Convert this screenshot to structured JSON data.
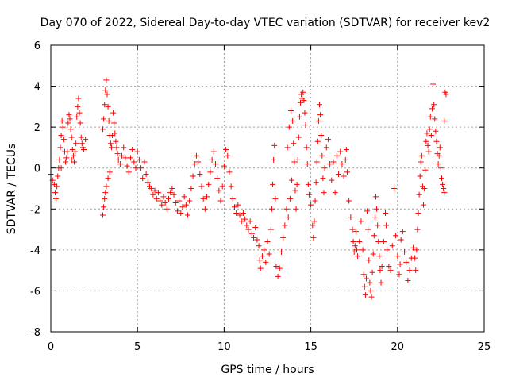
{
  "chart_data": {
    "type": "scatter",
    "title": "Day 070 of 2022, Sidereal Day-to-day VTEC variation (SDTVAR) for receiver kev2",
    "xlabel": "GPS time / hours",
    "ylabel": "SDTVAR / TECUs",
    "xlim": [
      0,
      25
    ],
    "ylim": [
      -8,
      6
    ],
    "xticks": [
      "0",
      "5",
      "10",
      "15",
      "20",
      "25"
    ],
    "yticks": [
      "-8",
      "-6",
      "-4",
      "-2",
      "0",
      "2",
      "4",
      "6"
    ],
    "grid": true,
    "marker": "+",
    "color": "#ff0000",
    "series": [
      {
        "name": "SDTVAR",
        "points": [
          [
            0.0,
            -0.3
          ],
          [
            0.1,
            -0.6
          ],
          [
            0.2,
            -0.8
          ],
          [
            0.25,
            -1.2
          ],
          [
            0.3,
            -1.5
          ],
          [
            0.35,
            -0.9
          ],
          [
            0.4,
            -0.4
          ],
          [
            0.45,
            0.0
          ],
          [
            0.5,
            0.4
          ],
          [
            0.55,
            1.0
          ],
          [
            0.6,
            1.6
          ],
          [
            0.65,
            2.3
          ],
          [
            0.7,
            2.0
          ],
          [
            0.75,
            1.4
          ],
          [
            0.8,
            0.8
          ],
          [
            0.85,
            0.3
          ],
          [
            0.9,
            0.5
          ],
          [
            0.95,
            0.8
          ],
          [
            1.0,
            2.2
          ],
          [
            1.05,
            2.6
          ],
          [
            1.1,
            2.4
          ],
          [
            1.15,
            1.9
          ],
          [
            1.2,
            1.5
          ],
          [
            1.25,
            0.9
          ],
          [
            1.3,
            0.6
          ],
          [
            1.35,
            0.3
          ],
          [
            1.4,
            0.8
          ],
          [
            1.45,
            1.2
          ],
          [
            1.5,
            2.5
          ],
          [
            1.55,
            3.0
          ],
          [
            1.6,
            3.4
          ],
          [
            1.65,
            2.7
          ],
          [
            1.7,
            2.2
          ],
          [
            1.75,
            1.5
          ],
          [
            1.8,
            1.2
          ],
          [
            1.85,
            1.0
          ],
          [
            1.9,
            0.9
          ],
          [
            2.0,
            1.4
          ],
          [
            0.6,
            0.0
          ],
          [
            1.2,
            0.4
          ],
          [
            3.0,
            -2.3
          ],
          [
            3.05,
            -1.9
          ],
          [
            3.1,
            -1.5
          ],
          [
            3.15,
            -1.2
          ],
          [
            3.2,
            -0.9
          ],
          [
            3.3,
            -0.5
          ],
          [
            3.4,
            -0.2
          ],
          [
            3.0,
            1.9
          ],
          [
            3.05,
            2.4
          ],
          [
            3.1,
            3.1
          ],
          [
            3.15,
            3.8
          ],
          [
            3.2,
            4.3
          ],
          [
            3.25,
            3.6
          ],
          [
            3.3,
            3.0
          ],
          [
            3.35,
            2.3
          ],
          [
            3.4,
            1.6
          ],
          [
            3.45,
            1.2
          ],
          [
            3.5,
            1.0
          ],
          [
            3.55,
            1.6
          ],
          [
            3.6,
            2.7
          ],
          [
            3.65,
            2.2
          ],
          [
            3.7,
            1.7
          ],
          [
            3.75,
            1.3
          ],
          [
            3.8,
            1.0
          ],
          [
            3.85,
            0.7
          ],
          [
            3.9,
            0.4
          ],
          [
            4.0,
            0.2
          ],
          [
            4.1,
            0.6
          ],
          [
            4.2,
            1.0
          ],
          [
            4.3,
            0.5
          ],
          [
            4.4,
            0.1
          ],
          [
            4.5,
            -0.2
          ],
          [
            4.6,
            0.5
          ],
          [
            4.7,
            0.9
          ],
          [
            4.8,
            0.3
          ],
          [
            4.9,
            0.0
          ],
          [
            5.0,
            0.8
          ],
          [
            5.1,
            0.4
          ],
          [
            5.2,
            0.0
          ],
          [
            5.3,
            -0.5
          ],
          [
            5.4,
            0.3
          ],
          [
            5.5,
            -0.3
          ],
          [
            5.6,
            -0.7
          ],
          [
            5.7,
            -0.9
          ],
          [
            5.8,
            -1.0
          ],
          [
            5.9,
            -1.3
          ],
          [
            6.0,
            -1.1
          ],
          [
            6.1,
            -1.5
          ],
          [
            6.2,
            -1.2
          ],
          [
            6.3,
            -1.6
          ],
          [
            6.4,
            -1.8
          ],
          [
            6.5,
            -1.4
          ],
          [
            6.6,
            -1.7
          ],
          [
            6.7,
            -2.0
          ],
          [
            6.8,
            -1.5
          ],
          [
            6.9,
            -1.2
          ],
          [
            7.0,
            -1.0
          ],
          [
            7.1,
            -1.3
          ],
          [
            7.2,
            -1.7
          ],
          [
            7.3,
            -2.1
          ],
          [
            7.4,
            -1.6
          ],
          [
            7.5,
            -2.2
          ],
          [
            7.6,
            -1.9
          ],
          [
            7.7,
            -1.4
          ],
          [
            7.8,
            -1.8
          ],
          [
            7.9,
            -2.3
          ],
          [
            8.0,
            -1.6
          ],
          [
            8.1,
            -1.0
          ],
          [
            8.2,
            -0.4
          ],
          [
            8.3,
            0.2
          ],
          [
            8.4,
            0.6
          ],
          [
            8.5,
            0.3
          ],
          [
            8.6,
            -0.3
          ],
          [
            8.7,
            -0.9
          ],
          [
            8.8,
            -1.5
          ],
          [
            8.9,
            -2.0
          ],
          [
            9.0,
            -1.4
          ],
          [
            9.1,
            -0.8
          ],
          [
            9.2,
            -0.2
          ],
          [
            9.3,
            0.4
          ],
          [
            9.4,
            0.8
          ],
          [
            9.5,
            0.2
          ],
          [
            9.6,
            -0.5
          ],
          [
            9.7,
            -1.1
          ],
          [
            9.8,
            -1.6
          ],
          [
            9.9,
            -0.9
          ],
          [
            10.0,
            0.1
          ],
          [
            10.1,
            0.9
          ],
          [
            10.2,
            0.6
          ],
          [
            10.3,
            -0.2
          ],
          [
            10.4,
            -0.9
          ],
          [
            10.5,
            -1.5
          ],
          [
            10.6,
            -1.9
          ],
          [
            10.7,
            -2.2
          ],
          [
            10.8,
            -1.8
          ],
          [
            10.9,
            -2.3
          ],
          [
            11.0,
            -2.6
          ],
          [
            11.1,
            -2.2
          ],
          [
            11.2,
            -2.5
          ],
          [
            11.3,
            -2.8
          ],
          [
            11.4,
            -3.0
          ],
          [
            11.5,
            -2.6
          ],
          [
            11.6,
            -3.2
          ],
          [
            11.7,
            -3.4
          ],
          [
            11.8,
            -2.9
          ],
          [
            11.9,
            -3.5
          ],
          [
            12.0,
            -3.8
          ],
          [
            12.05,
            -4.5
          ],
          [
            12.1,
            -4.9
          ],
          [
            12.2,
            -4.3
          ],
          [
            12.3,
            -4.0
          ],
          [
            12.4,
            -4.6
          ],
          [
            12.5,
            -3.6
          ],
          [
            12.6,
            -4.2
          ],
          [
            12.7,
            -3.0
          ],
          [
            12.75,
            -2.0
          ],
          [
            12.8,
            -0.8
          ],
          [
            12.85,
            0.4
          ],
          [
            12.9,
            1.1
          ],
          [
            12.95,
            -1.5
          ],
          [
            13.0,
            -4.8
          ],
          [
            13.1,
            -5.3
          ],
          [
            13.2,
            -4.9
          ],
          [
            13.3,
            -4.1
          ],
          [
            13.4,
            -3.4
          ],
          [
            13.5,
            -2.8
          ],
          [
            13.6,
            -2.0
          ],
          [
            13.7,
            -2.4
          ],
          [
            13.8,
            -1.5
          ],
          [
            13.9,
            -0.6
          ],
          [
            13.65,
            1.0
          ],
          [
            13.75,
            2.0
          ],
          [
            13.85,
            2.8
          ],
          [
            13.95,
            2.3
          ],
          [
            14.0,
            1.2
          ],
          [
            14.05,
            0.3
          ],
          [
            14.1,
            -1.1
          ],
          [
            14.15,
            -2.0
          ],
          [
            14.2,
            -0.8
          ],
          [
            14.25,
            0.4
          ],
          [
            14.3,
            1.5
          ],
          [
            14.35,
            2.5
          ],
          [
            14.4,
            3.2
          ],
          [
            14.45,
            3.6
          ],
          [
            14.5,
            3.4
          ],
          [
            14.55,
            3.7
          ],
          [
            14.6,
            3.3
          ],
          [
            14.65,
            2.7
          ],
          [
            14.7,
            2.1
          ],
          [
            14.75,
            1.0
          ],
          [
            14.8,
            0.2
          ],
          [
            14.85,
            -0.8
          ],
          [
            14.9,
            -1.3
          ],
          [
            15.0,
            -1.8
          ],
          [
            15.1,
            -2.8
          ],
          [
            15.15,
            -3.4
          ],
          [
            15.2,
            -2.6
          ],
          [
            15.25,
            -1.6
          ],
          [
            15.3,
            -0.7
          ],
          [
            15.35,
            0.3
          ],
          [
            15.4,
            1.3
          ],
          [
            15.45,
            2.3
          ],
          [
            15.5,
            3.1
          ],
          [
            15.55,
            2.6
          ],
          [
            15.6,
            1.6
          ],
          [
            15.65,
            0.6
          ],
          [
            15.7,
            -0.5
          ],
          [
            15.75,
            -1.2
          ],
          [
            15.8,
            0.0
          ],
          [
            15.9,
            1.0
          ],
          [
            16.0,
            1.4
          ],
          [
            16.1,
            0.2
          ],
          [
            16.2,
            -0.6
          ],
          [
            16.3,
            0.3
          ],
          [
            16.4,
            -1.2
          ],
          [
            16.5,
            0.6
          ],
          [
            16.6,
            -0.3
          ],
          [
            16.7,
            0.8
          ],
          [
            16.8,
            0.2
          ],
          [
            16.9,
            -0.4
          ],
          [
            17.0,
            0.4
          ],
          [
            17.05,
            0.9
          ],
          [
            17.1,
            -0.2
          ],
          [
            17.2,
            -1.6
          ],
          [
            17.3,
            -2.4
          ],
          [
            17.4,
            -3.0
          ],
          [
            17.45,
            -3.6
          ],
          [
            17.5,
            -4.1
          ],
          [
            17.55,
            -3.8
          ],
          [
            17.6,
            -3.1
          ],
          [
            17.65,
            -4.0
          ],
          [
            17.7,
            -4.3
          ],
          [
            17.8,
            -3.6
          ],
          [
            17.9,
            -2.6
          ],
          [
            18.0,
            -4.0
          ],
          [
            18.05,
            -5.2
          ],
          [
            18.1,
            -5.8
          ],
          [
            18.15,
            -6.2
          ],
          [
            18.2,
            -5.4
          ],
          [
            18.25,
            -2.1
          ],
          [
            18.3,
            -3.0
          ],
          [
            18.35,
            -4.5
          ],
          [
            18.4,
            -5.6
          ],
          [
            18.45,
            -6.0
          ],
          [
            18.5,
            -6.3
          ],
          [
            18.55,
            -5.1
          ],
          [
            18.6,
            -4.2
          ],
          [
            18.65,
            -3.3
          ],
          [
            18.7,
            -2.4
          ],
          [
            18.75,
            -1.4
          ],
          [
            18.8,
            -2.0
          ],
          [
            18.85,
            -2.8
          ],
          [
            18.9,
            -3.6
          ],
          [
            18.95,
            -4.3
          ],
          [
            19.0,
            -5.0
          ],
          [
            19.05,
            -5.6
          ],
          [
            19.1,
            -4.8
          ],
          [
            19.2,
            -3.6
          ],
          [
            19.3,
            -2.2
          ],
          [
            19.35,
            -2.8
          ],
          [
            19.4,
            -4.0
          ],
          [
            19.5,
            -4.8
          ],
          [
            19.6,
            -5.0
          ],
          [
            19.7,
            -3.8
          ],
          [
            19.8,
            -1.0
          ],
          [
            19.9,
            -3.3
          ],
          [
            20.0,
            -4.3
          ],
          [
            20.1,
            -5.2
          ],
          [
            20.15,
            -4.7
          ],
          [
            20.2,
            -3.5
          ],
          [
            20.3,
            -3.1
          ],
          [
            20.4,
            -4.1
          ],
          [
            20.5,
            -4.6
          ],
          [
            20.6,
            -5.5
          ],
          [
            20.7,
            -5.0
          ],
          [
            20.8,
            -4.4
          ],
          [
            20.9,
            -3.9
          ],
          [
            21.0,
            -4.4
          ],
          [
            21.05,
            -5.0
          ],
          [
            21.1,
            -4.0
          ],
          [
            21.15,
            -3.0
          ],
          [
            21.2,
            -2.2
          ],
          [
            21.25,
            -1.3
          ],
          [
            21.3,
            -0.4
          ],
          [
            21.35,
            0.3
          ],
          [
            21.4,
            0.6
          ],
          [
            21.45,
            -0.9
          ],
          [
            21.5,
            -1.8
          ],
          [
            21.55,
            -1.0
          ],
          [
            21.6,
            -0.1
          ],
          [
            21.65,
            1.3
          ],
          [
            21.7,
            1.7
          ],
          [
            21.75,
            1.1
          ],
          [
            21.8,
            0.8
          ],
          [
            21.85,
            1.9
          ],
          [
            21.9,
            2.5
          ],
          [
            21.95,
            1.6
          ],
          [
            22.0,
            2.9
          ],
          [
            22.05,
            4.1
          ],
          [
            22.1,
            3.1
          ],
          [
            22.15,
            2.4
          ],
          [
            22.2,
            1.8
          ],
          [
            22.25,
            1.3
          ],
          [
            22.3,
            0.7
          ],
          [
            22.35,
            0.2
          ],
          [
            22.4,
            0.6
          ],
          [
            22.45,
            1.0
          ],
          [
            22.5,
            0.0
          ],
          [
            22.55,
            -0.5
          ],
          [
            22.6,
            -0.8
          ],
          [
            22.65,
            -1.0
          ],
          [
            22.7,
            -1.2
          ],
          [
            22.75,
            3.7
          ],
          [
            22.8,
            3.6
          ],
          [
            22.7,
            2.3
          ]
        ]
      }
    ]
  }
}
